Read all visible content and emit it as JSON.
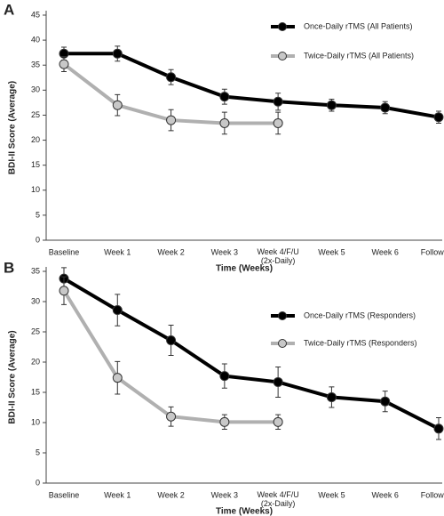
{
  "chart_data": [
    {
      "type": "line",
      "label": "A",
      "x_label": "Time (Weeks)",
      "y_label": "BDI-II Score (Average)",
      "categories": [
        "Baseline",
        "Week 1",
        "Week 2",
        "Week 3",
        "Week 4/F/U\n(2x-Daily)",
        "Week 5",
        "Week 6",
        "Follow-Up"
      ],
      "ylim": [
        0,
        45
      ],
      "yticks": [
        0,
        5,
        10,
        15,
        20,
        25,
        30,
        35,
        40,
        45
      ],
      "series": [
        {
          "name": "Once-Daily rTMS (All Patients)",
          "color": "#000000",
          "marker_color": "#000000",
          "values": [
            37.3,
            37.3,
            32.6,
            28.7,
            27.7,
            27.0,
            26.5,
            24.6
          ],
          "errors": [
            1.3,
            1.5,
            1.5,
            1.5,
            1.7,
            1.2,
            1.2,
            1.2
          ]
        },
        {
          "name": "Twice-Daily rTMS (All Patients)",
          "color": "#b0b0b0",
          "marker_color": "#c8c8c8",
          "values": [
            35.2,
            27.0,
            24.0,
            23.4,
            23.4,
            null,
            null,
            null
          ],
          "errors": [
            1.5,
            2.1,
            2.1,
            2.2,
            2.2,
            null,
            null,
            null
          ]
        }
      ]
    },
    {
      "type": "line",
      "label": "B",
      "x_label": "Time (Weeks)",
      "y_label": "BDI-II Score (Average)",
      "categories": [
        "Baseline",
        "Week 1",
        "Week 2",
        "Week 3",
        "Week 4/F/U\n(2x-Daily)",
        "Week 5",
        "Week 6",
        "Follow-Up"
      ],
      "ylim": [
        0,
        35
      ],
      "yticks": [
        0,
        5,
        10,
        15,
        20,
        25,
        30,
        35
      ],
      "series": [
        {
          "name": "Once-Daily rTMS (Responders)",
          "color": "#000000",
          "marker_color": "#000000",
          "values": [
            33.8,
            28.6,
            23.6,
            17.7,
            16.7,
            14.2,
            13.5,
            9.0
          ],
          "errors": [
            1.8,
            2.6,
            2.5,
            2.0,
            2.5,
            1.7,
            1.7,
            1.8
          ]
        },
        {
          "name": "Twice-Daily rTMS (Responders)",
          "color": "#b0b0b0",
          "marker_color": "#c8c8c8",
          "values": [
            31.8,
            17.4,
            11.0,
            10.1,
            10.1,
            null,
            null,
            null
          ],
          "errors": [
            2.3,
            2.7,
            1.6,
            1.2,
            1.2,
            null,
            null,
            null
          ]
        }
      ]
    }
  ]
}
